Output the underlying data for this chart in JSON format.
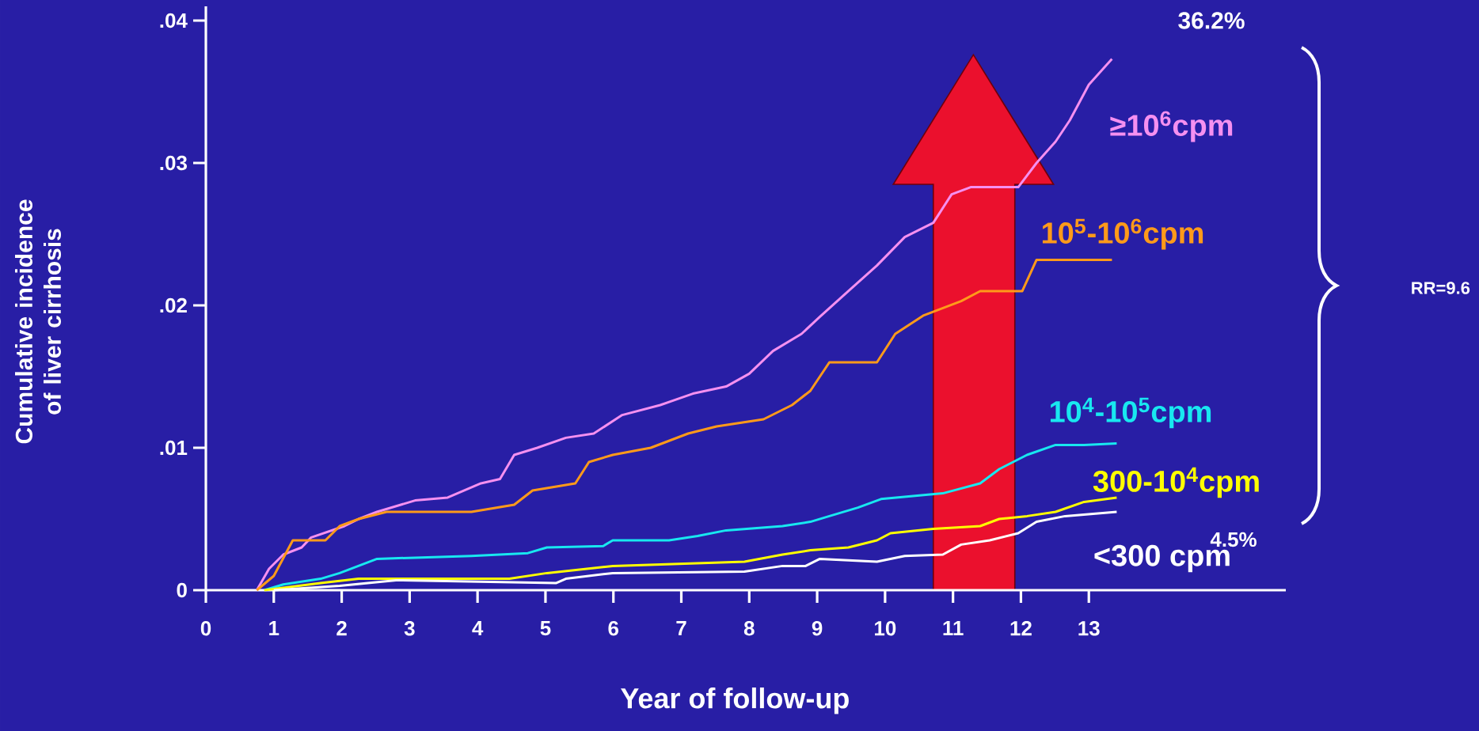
{
  "chart_data": {
    "type": "line",
    "xlabel": "Year of follow-up",
    "ylabel": "Cumulative incidence of liver cirrhosis",
    "xlim": [
      0,
      15.9
    ],
    "ylim": [
      0,
      0.041
    ],
    "xticks": [
      0,
      1,
      2,
      3,
      4,
      5,
      6,
      7,
      8,
      9,
      10,
      11,
      12,
      13
    ],
    "yticks": [
      0,
      {
        "value": 0.01,
        "label": ".01"
      },
      {
        "value": 0.02,
        "label": ".02"
      },
      {
        "value": 0.03,
        "label": ".03"
      },
      {
        "value": 0.04,
        "label": ".04"
      }
    ],
    "grid": false,
    "legend": false,
    "marker": "none",
    "line_style": "solid",
    "series": [
      {
        "name": "≥10$^{6}$cpm",
        "color": "#f590f0",
        "x": [
          0.75,
          0.93,
          1.14,
          1.41,
          1.55,
          2.04,
          2.25,
          2.52,
          3.08,
          3.56,
          4.05,
          4.33,
          4.54,
          4.88,
          5.3,
          5.71,
          6.13,
          6.69,
          7.17,
          7.66,
          8.0,
          8.35,
          8.77,
          9.04,
          9.46,
          9.88,
          10.29,
          10.71,
          10.98,
          11.26,
          11.96,
          12.23,
          12.51,
          12.72,
          13.0,
          13.34
        ],
        "values": [
          0,
          0.0015,
          0.0025,
          0.003,
          0.0037,
          0.0045,
          0.005,
          0.0055,
          0.0063,
          0.0065,
          0.0075,
          0.0078,
          0.0095,
          0.01,
          0.0107,
          0.011,
          0.0123,
          0.013,
          0.0138,
          0.0143,
          0.0152,
          0.0168,
          0.018,
          0.0192,
          0.021,
          0.0228,
          0.0248,
          0.0258,
          0.0278,
          0.0283,
          0.0283,
          0.03,
          0.0315,
          0.033,
          0.0355,
          0.0373
        ]
      },
      {
        "name": "10$^{5}$-10$^{6}$cpm",
        "color": "#ff9a1a",
        "x": [
          0.75,
          1.0,
          1.28,
          1.76,
          1.97,
          2.25,
          2.66,
          3.91,
          4.54,
          4.81,
          5.44,
          5.64,
          5.99,
          6.55,
          7.1,
          7.52,
          8.21,
          8.63,
          8.9,
          9.18,
          9.88,
          10.15,
          10.57,
          11.12,
          11.4,
          12.02,
          12.23,
          13.34
        ],
        "values": [
          0,
          0.001,
          0.0035,
          0.0035,
          0.0045,
          0.005,
          0.0055,
          0.0055,
          0.006,
          0.007,
          0.0075,
          0.009,
          0.0095,
          0.01,
          0.011,
          0.0115,
          0.012,
          0.013,
          0.014,
          0.016,
          0.016,
          0.018,
          0.0193,
          0.0203,
          0.021,
          0.021,
          0.0232,
          0.0232
        ]
      },
      {
        "name": "10$^{4}$-10$^{5}$cpm",
        "color": "#18e8f0",
        "x": [
          0.86,
          1.14,
          1.69,
          1.97,
          2.52,
          3.91,
          4.74,
          5.02,
          5.85,
          5.99,
          6.82,
          7.24,
          7.66,
          8.49,
          8.9,
          9.18,
          9.6,
          9.94,
          10.85,
          11.4,
          11.68,
          12.09,
          12.51,
          12.93,
          13.41
        ],
        "values": [
          0,
          0.0004,
          0.0008,
          0.0012,
          0.0022,
          0.0024,
          0.0026,
          0.003,
          0.0031,
          0.0035,
          0.0035,
          0.0038,
          0.0042,
          0.0045,
          0.0048,
          0.0052,
          0.0058,
          0.0064,
          0.0068,
          0.0075,
          0.0085,
          0.0095,
          0.0102,
          0.0102,
          0.0103
        ]
      },
      {
        "name": "300-10$^{4}$cpm",
        "color": "#ffff00",
        "x": [
          0.86,
          1.69,
          2.25,
          4.47,
          5.02,
          5.99,
          7.93,
          8.49,
          8.9,
          9.46,
          9.88,
          10.08,
          10.71,
          11.4,
          11.68,
          12.09,
          12.51,
          12.93,
          13.41
        ],
        "values": [
          0,
          0.0005,
          0.0008,
          0.0008,
          0.0012,
          0.0017,
          0.002,
          0.0025,
          0.0028,
          0.003,
          0.0035,
          0.004,
          0.0043,
          0.0045,
          0.005,
          0.0052,
          0.0055,
          0.0062,
          0.0065
        ]
      },
      {
        "name": "<300 cpm",
        "color": "#ffffff",
        "x": [
          1.0,
          1.97,
          2.8,
          5.16,
          5.3,
          5.99,
          7.93,
          8.49,
          8.83,
          9.04,
          9.88,
          10.29,
          10.85,
          11.12,
          11.54,
          11.96,
          12.23,
          12.65,
          13.41
        ],
        "values": [
          0,
          0.0003,
          0.0007,
          0.0005,
          0.0008,
          0.0012,
          0.0013,
          0.0017,
          0.0017,
          0.0022,
          0.002,
          0.0024,
          0.0025,
          0.0032,
          0.0035,
          0.004,
          0.0048,
          0.0052,
          0.0055
        ]
      }
    ],
    "annotations": [
      "36.2%",
      "4.5%",
      "RR=9.6"
    ]
  }
}
